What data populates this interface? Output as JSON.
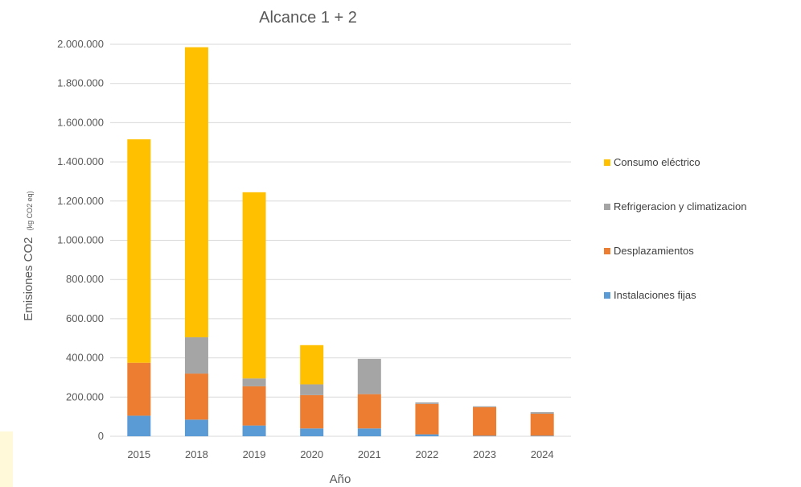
{
  "chart_data": {
    "type": "bar",
    "stacked": true,
    "title": "Alcance 1 + 2",
    "xlabel": "Año",
    "ylabel": "Emisiones CO2",
    "ylabel_unit": "(kg CO2 eq)",
    "categories": [
      "2015",
      "2018",
      "2019",
      "2020",
      "2021",
      "2022",
      "2023",
      "2024"
    ],
    "ylim": [
      0,
      2000000
    ],
    "yticks": [
      0,
      200000,
      400000,
      600000,
      800000,
      1000000,
      1200000,
      1400000,
      1600000,
      1800000,
      2000000
    ],
    "ytick_labels": [
      "0",
      "200.000",
      "400.000",
      "600.000",
      "800.000",
      "1.000.000",
      "1.200.000",
      "1.400.000",
      "1.600.000",
      "1.800.000",
      "2.000.000"
    ],
    "grid": true,
    "legend_position": "right",
    "series": [
      {
        "name": "Instalaciones fijas",
        "color": "#5b9bd5",
        "values": [
          105000,
          85000,
          55000,
          40000,
          40000,
          10000,
          3000,
          3000
        ]
      },
      {
        "name": "Desplazamientos",
        "color": "#ed7d31",
        "values": [
          270000,
          235000,
          200000,
          170000,
          175000,
          155000,
          145000,
          112000
        ]
      },
      {
        "name": "Refrigeracion y climatizacion",
        "color": "#a5a5a5",
        "values": [
          0,
          185000,
          40000,
          55000,
          180000,
          8000,
          5000,
          8000
        ]
      },
      {
        "name": "Consumo eléctrico",
        "color": "#ffc000",
        "values": [
          1140000,
          1480000,
          950000,
          200000,
          0,
          0,
          0,
          0
        ]
      }
    ],
    "legend_order": [
      "Consumo eléctrico",
      "Refrigeracion y climatizacion",
      "Desplazamientos",
      "Instalaciones fijas"
    ]
  }
}
